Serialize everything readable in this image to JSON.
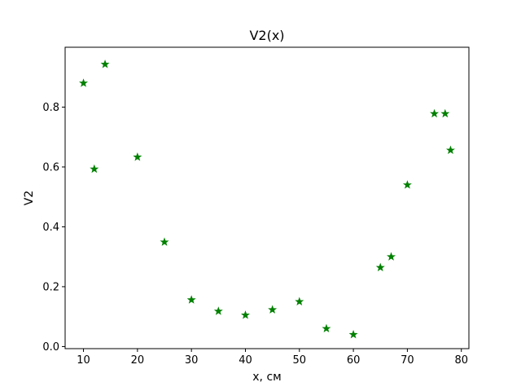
{
  "chart_data": {
    "type": "scatter",
    "title": "V2(x)",
    "xlabel": "x, см",
    "ylabel": "V2",
    "xlim": [
      6.6,
      81.4
    ],
    "ylim": [
      -0.007,
      1.0
    ],
    "xticks": [
      10,
      20,
      30,
      40,
      50,
      60,
      70,
      80
    ],
    "yticks": [
      0.0,
      0.2,
      0.4,
      0.6,
      0.8
    ],
    "ytick_labels": [
      "0.0",
      "0.2",
      "0.4",
      "0.6",
      "0.8"
    ],
    "grid": false,
    "marker": "star",
    "color": "#008000",
    "series": [
      {
        "x": [
          10,
          12,
          14,
          20,
          25,
          30,
          35,
          40,
          45,
          50,
          55,
          60,
          65,
          67,
          70,
          75,
          77,
          78
        ],
        "y": [
          0.88,
          0.593,
          0.943,
          0.633,
          0.349,
          0.156,
          0.118,
          0.105,
          0.123,
          0.15,
          0.06,
          0.04,
          0.264,
          0.3,
          0.54,
          0.778,
          0.778,
          0.656
        ]
      }
    ]
  }
}
